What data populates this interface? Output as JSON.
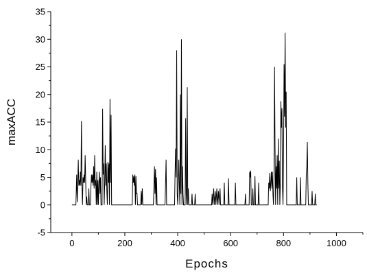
{
  "chart_data": {
    "type": "line",
    "title": "",
    "xlabel": "Epochs",
    "ylabel": "maxACC",
    "xlim": [
      -80,
      1100
    ],
    "ylim": [
      -5,
      35
    ],
    "x_ticks": [
      0,
      200,
      400,
      600,
      800,
      1000
    ],
    "y_ticks": [
      -5,
      0,
      5,
      10,
      15,
      20,
      25,
      30,
      35
    ],
    "x_minor_step": 100,
    "y_minor_step": 2.5,
    "grid": false,
    "legend": "none",
    "line_color": "#000000",
    "series": [
      {
        "values": [
          [
            0,
            0
          ],
          [
            15,
            0
          ],
          [
            18,
            5.5
          ],
          [
            20,
            0.5
          ],
          [
            22,
            3.5
          ],
          [
            24,
            8.2
          ],
          [
            26,
            3.5
          ],
          [
            28,
            4.5
          ],
          [
            30,
            3.5
          ],
          [
            32,
            6
          ],
          [
            34,
            3.5
          ],
          [
            36,
            15.2
          ],
          [
            38,
            3.5
          ],
          [
            40,
            0
          ],
          [
            42,
            5
          ],
          [
            44,
            4
          ],
          [
            46,
            5.5
          ],
          [
            48,
            4
          ],
          [
            50,
            9
          ],
          [
            52,
            4.5
          ],
          [
            54,
            0
          ],
          [
            56,
            1.5
          ],
          [
            58,
            0
          ],
          [
            62,
            0
          ],
          [
            64,
            3
          ],
          [
            66,
            0
          ],
          [
            70,
            0
          ],
          [
            72,
            3.5
          ],
          [
            74,
            5.5
          ],
          [
            76,
            4
          ],
          [
            78,
            5.5
          ],
          [
            80,
            3.5
          ],
          [
            82,
            7
          ],
          [
            84,
            3
          ],
          [
            86,
            9
          ],
          [
            88,
            3.5
          ],
          [
            90,
            4.5
          ],
          [
            92,
            0
          ],
          [
            94,
            6
          ],
          [
            96,
            0
          ],
          [
            98,
            4.5
          ],
          [
            100,
            0
          ],
          [
            102,
            4
          ],
          [
            104,
            6
          ],
          [
            106,
            2
          ],
          [
            108,
            5
          ],
          [
            110,
            0
          ],
          [
            114,
            0
          ],
          [
            116,
            17.4
          ],
          [
            118,
            5.5
          ],
          [
            120,
            7.5
          ],
          [
            122,
            0
          ],
          [
            124,
            4
          ],
          [
            126,
            10.8
          ],
          [
            128,
            3.5
          ],
          [
            130,
            7.5
          ],
          [
            132,
            2.5
          ],
          [
            134,
            0
          ],
          [
            136,
            7.8
          ],
          [
            138,
            4
          ],
          [
            140,
            7.5
          ],
          [
            142,
            0
          ],
          [
            144,
            19.2
          ],
          [
            146,
            4
          ],
          [
            148,
            16.3
          ],
          [
            150,
            0
          ],
          [
            228,
            0
          ],
          [
            230,
            5.5
          ],
          [
            232,
            4
          ],
          [
            234,
            5.2
          ],
          [
            236,
            3.5
          ],
          [
            238,
            5.5
          ],
          [
            240,
            0
          ],
          [
            242,
            5.2
          ],
          [
            244,
            2
          ],
          [
            246,
            2.2
          ],
          [
            248,
            0
          ],
          [
            260,
            0
          ],
          [
            262,
            2.5
          ],
          [
            264,
            0
          ],
          [
            266,
            3
          ],
          [
            268,
            0
          ],
          [
            308,
            0
          ],
          [
            310,
            3
          ],
          [
            312,
            7
          ],
          [
            314,
            2
          ],
          [
            316,
            6.5
          ],
          [
            318,
            0
          ],
          [
            320,
            5
          ],
          [
            322,
            0
          ],
          [
            352,
            0
          ],
          [
            356,
            8.2
          ],
          [
            358,
            0
          ],
          [
            388,
            0
          ],
          [
            390,
            6
          ],
          [
            392,
            10.2
          ],
          [
            394,
            5
          ],
          [
            396,
            28
          ],
          [
            398,
            2
          ],
          [
            400,
            0
          ],
          [
            402,
            4
          ],
          [
            404,
            8.2
          ],
          [
            406,
            3.5
          ],
          [
            408,
            0
          ],
          [
            410,
            20
          ],
          [
            412,
            2
          ],
          [
            414,
            30
          ],
          [
            416,
            0
          ],
          [
            418,
            7
          ],
          [
            420,
            2
          ],
          [
            422,
            0
          ],
          [
            428,
            0
          ],
          [
            430,
            15.7
          ],
          [
            432,
            2
          ],
          [
            434,
            0
          ],
          [
            436,
            21.3
          ],
          [
            438,
            0
          ],
          [
            440,
            3
          ],
          [
            442,
            0
          ],
          [
            452,
            0
          ],
          [
            454,
            2
          ],
          [
            456,
            0
          ],
          [
            464,
            0
          ],
          [
            466,
            2
          ],
          [
            468,
            0
          ],
          [
            528,
            0
          ],
          [
            530,
            2
          ],
          [
            532,
            0
          ],
          [
            536,
            3
          ],
          [
            538,
            0
          ],
          [
            542,
            2.5
          ],
          [
            544,
            0
          ],
          [
            548,
            3
          ],
          [
            550,
            0
          ],
          [
            554,
            2.5
          ],
          [
            556,
            0
          ],
          [
            560,
            3
          ],
          [
            562,
            0
          ],
          [
            574,
            0
          ],
          [
            576,
            4
          ],
          [
            578,
            0
          ],
          [
            590,
            0
          ],
          [
            592,
            4.8
          ],
          [
            594,
            0
          ],
          [
            616,
            0
          ],
          [
            618,
            4
          ],
          [
            620,
            0
          ],
          [
            654,
            0
          ],
          [
            656,
            2
          ],
          [
            658,
            0
          ],
          [
            670,
            0
          ],
          [
            672,
            6
          ],
          [
            674,
            5
          ],
          [
            676,
            6.2
          ],
          [
            678,
            0
          ],
          [
            682,
            0
          ],
          [
            684,
            3
          ],
          [
            686,
            0
          ],
          [
            690,
            0
          ],
          [
            692,
            5.2
          ],
          [
            694,
            0
          ],
          [
            704,
            0
          ],
          [
            706,
            4
          ],
          [
            708,
            0
          ],
          [
            742,
            0
          ],
          [
            744,
            4
          ],
          [
            746,
            3
          ],
          [
            748,
            5.8
          ],
          [
            750,
            2.5
          ],
          [
            752,
            4
          ],
          [
            754,
            6
          ],
          [
            756,
            3
          ],
          [
            758,
            6
          ],
          [
            760,
            2
          ],
          [
            762,
            0
          ],
          [
            764,
            5
          ],
          [
            766,
            25
          ],
          [
            768,
            10
          ],
          [
            770,
            0
          ],
          [
            772,
            7
          ],
          [
            774,
            3
          ],
          [
            776,
            9
          ],
          [
            778,
            0
          ],
          [
            780,
            12
          ],
          [
            782,
            3
          ],
          [
            784,
            8
          ],
          [
            786,
            0
          ],
          [
            788,
            4
          ],
          [
            790,
            18.8
          ],
          [
            792,
            14
          ],
          [
            794,
            17.5
          ],
          [
            796,
            3.5
          ],
          [
            798,
            0
          ],
          [
            800,
            8
          ],
          [
            802,
            25.5
          ],
          [
            804,
            16
          ],
          [
            806,
            31.2
          ],
          [
            808,
            14
          ],
          [
            810,
            20.5
          ],
          [
            812,
            0
          ],
          [
            848,
            0
          ],
          [
            850,
            5
          ],
          [
            852,
            0
          ],
          [
            862,
            0
          ],
          [
            864,
            5
          ],
          [
            866,
            0
          ],
          [
            884,
            0
          ],
          [
            886,
            5.5
          ],
          [
            888,
            7
          ],
          [
            890,
            11.4
          ],
          [
            892,
            4
          ],
          [
            894,
            0
          ],
          [
            906,
            0
          ],
          [
            908,
            2.5
          ],
          [
            910,
            0
          ],
          [
            918,
            0
          ],
          [
            920,
            2
          ],
          [
            922,
            0
          ],
          [
            926,
            0
          ]
        ]
      }
    ]
  }
}
